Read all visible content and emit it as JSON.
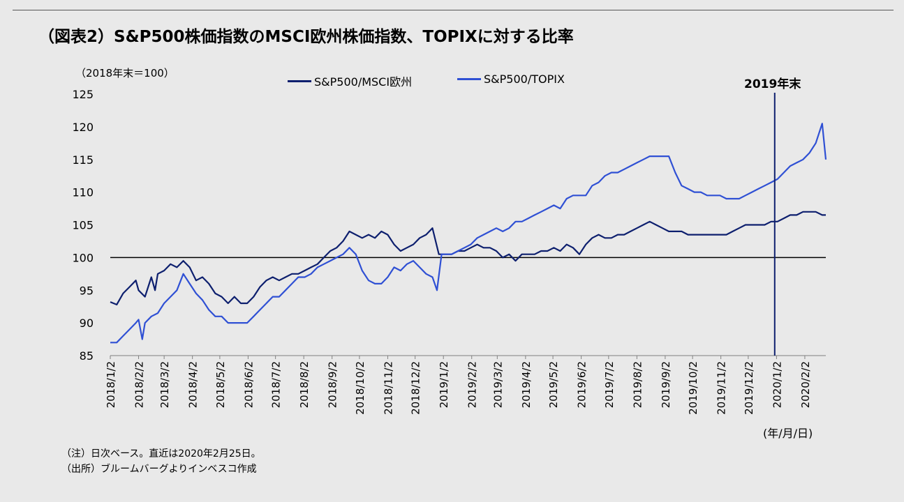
{
  "title": "（図表2）S&P500株価指数のMSCI欧州株価指数、TOPIXに対する比率",
  "y_unit_label": "（2018年末＝100）",
  "x_unit_label": "(年/月/日)",
  "notes": [
    "（注）日次ベース。直近は2020年2月25日。",
    "（出所）ブルームバーグよりインベスコ作成"
  ],
  "colors": {
    "series1": "#0d1f6e",
    "series2": "#2f50d4",
    "reference": "#000000",
    "marker": "#0d1f6e"
  },
  "chart_data": {
    "type": "line",
    "title": "（図表2）S&P500株価指数のMSCI欧州株価指数、TOPIXに対する比率",
    "ylim": [
      85,
      125
    ],
    "yticks": [
      85,
      90,
      95,
      100,
      105,
      110,
      115,
      120,
      125
    ],
    "xlim": [
      "2018-01-02",
      "2020-02-25"
    ],
    "x_tick_labels": [
      "2018/1/2",
      "2018/2/2",
      "2018/3/2",
      "2018/4/2",
      "2018/5/2",
      "2018/6/2",
      "2018/7/2",
      "2018/8/2",
      "2018/9/2",
      "2018/10/2",
      "2018/11/2",
      "2018/12/2",
      "2019/1/2",
      "2019/2/2",
      "2019/3/2",
      "2019/4/2",
      "2019/5/2",
      "2019/6/2",
      "2019/7/2",
      "2019/8/2",
      "2019/9/2",
      "2019/10/2",
      "2019/11/2",
      "2019/12/2",
      "2020/1/2",
      "2020/2/2"
    ],
    "legend_position": "top",
    "reference_line": {
      "y": 100
    },
    "annotation": {
      "label": "2019年末",
      "x": "2019-12-31"
    },
    "series": [
      {
        "name": "S&P500/MSCI欧州",
        "color": "#0d1f6e",
        "points": [
          [
            "2018-01-02",
            93.2
          ],
          [
            "2018-01-09",
            92.8
          ],
          [
            "2018-01-16",
            94.5
          ],
          [
            "2018-01-23",
            95.5
          ],
          [
            "2018-01-30",
            96.5
          ],
          [
            "2018-02-02",
            95
          ],
          [
            "2018-02-09",
            94
          ],
          [
            "2018-02-16",
            97
          ],
          [
            "2018-02-20",
            95
          ],
          [
            "2018-02-23",
            97.5
          ],
          [
            "2018-03-02",
            98
          ],
          [
            "2018-03-09",
            99
          ],
          [
            "2018-03-16",
            98.5
          ],
          [
            "2018-03-23",
            99.5
          ],
          [
            "2018-03-30",
            98.5
          ],
          [
            "2018-04-06",
            96.5
          ],
          [
            "2018-04-13",
            97
          ],
          [
            "2018-04-20",
            96
          ],
          [
            "2018-04-27",
            94.5
          ],
          [
            "2018-05-04",
            94
          ],
          [
            "2018-05-11",
            93
          ],
          [
            "2018-05-18",
            94
          ],
          [
            "2018-05-25",
            93
          ],
          [
            "2018-06-01",
            93
          ],
          [
            "2018-06-08",
            94
          ],
          [
            "2018-06-15",
            95.5
          ],
          [
            "2018-06-22",
            96.5
          ],
          [
            "2018-06-29",
            97
          ],
          [
            "2018-07-06",
            96.5
          ],
          [
            "2018-07-13",
            97
          ],
          [
            "2018-07-20",
            97.5
          ],
          [
            "2018-07-27",
            97.5
          ],
          [
            "2018-08-03",
            98
          ],
          [
            "2018-08-10",
            98.5
          ],
          [
            "2018-08-17",
            99
          ],
          [
            "2018-08-24",
            100
          ],
          [
            "2018-08-31",
            101
          ],
          [
            "2018-09-07",
            101.5
          ],
          [
            "2018-09-14",
            102.5
          ],
          [
            "2018-09-21",
            104
          ],
          [
            "2018-09-28",
            103.5
          ],
          [
            "2018-10-05",
            103
          ],
          [
            "2018-10-12",
            103.5
          ],
          [
            "2018-10-19",
            103
          ],
          [
            "2018-10-26",
            104
          ],
          [
            "2018-11-02",
            103.5
          ],
          [
            "2018-11-09",
            102
          ],
          [
            "2018-11-16",
            101
          ],
          [
            "2018-11-23",
            101.5
          ],
          [
            "2018-11-30",
            102
          ],
          [
            "2018-12-07",
            103
          ],
          [
            "2018-12-14",
            103.5
          ],
          [
            "2018-12-21",
            104.5
          ],
          [
            "2018-12-28",
            100.5
          ],
          [
            "2019-01-04",
            100.5
          ],
          [
            "2019-01-11",
            100.5
          ],
          [
            "2019-01-18",
            101
          ],
          [
            "2019-01-25",
            101
          ],
          [
            "2019-02-01",
            101.5
          ],
          [
            "2019-02-08",
            102
          ],
          [
            "2019-02-15",
            101.5
          ],
          [
            "2019-02-22",
            101.5
          ],
          [
            "2019-03-01",
            101
          ],
          [
            "2019-03-08",
            100
          ],
          [
            "2019-03-15",
            100.5
          ],
          [
            "2019-03-22",
            99.5
          ],
          [
            "2019-03-29",
            100.5
          ],
          [
            "2019-04-05",
            100.5
          ],
          [
            "2019-04-12",
            100.5
          ],
          [
            "2019-04-19",
            101
          ],
          [
            "2019-04-26",
            101
          ],
          [
            "2019-05-03",
            101.5
          ],
          [
            "2019-05-10",
            101
          ],
          [
            "2019-05-17",
            102
          ],
          [
            "2019-05-24",
            101.5
          ],
          [
            "2019-05-31",
            100.5
          ],
          [
            "2019-06-07",
            102
          ],
          [
            "2019-06-14",
            103
          ],
          [
            "2019-06-21",
            103.5
          ],
          [
            "2019-06-28",
            103
          ],
          [
            "2019-07-05",
            103
          ],
          [
            "2019-07-12",
            103.5
          ],
          [
            "2019-07-19",
            103.5
          ],
          [
            "2019-07-26",
            104
          ],
          [
            "2019-08-02",
            104.5
          ],
          [
            "2019-08-09",
            105
          ],
          [
            "2019-08-16",
            105.5
          ],
          [
            "2019-08-23",
            105
          ],
          [
            "2019-08-30",
            104.5
          ],
          [
            "2019-09-06",
            104
          ],
          [
            "2019-09-13",
            104
          ],
          [
            "2019-09-20",
            104
          ],
          [
            "2019-09-27",
            103.5
          ],
          [
            "2019-10-04",
            103.5
          ],
          [
            "2019-10-11",
            103.5
          ],
          [
            "2019-10-18",
            103.5
          ],
          [
            "2019-10-25",
            103.5
          ],
          [
            "2019-11-01",
            103.5
          ],
          [
            "2019-11-08",
            103.5
          ],
          [
            "2019-11-15",
            104
          ],
          [
            "2019-11-22",
            104.5
          ],
          [
            "2019-11-29",
            105
          ],
          [
            "2019-12-06",
            105
          ],
          [
            "2019-12-13",
            105
          ],
          [
            "2019-12-20",
            105
          ],
          [
            "2019-12-27",
            105.5
          ],
          [
            "2020-01-03",
            105.5
          ],
          [
            "2020-01-10",
            106
          ],
          [
            "2020-01-17",
            106.5
          ],
          [
            "2020-01-24",
            106.5
          ],
          [
            "2020-01-31",
            107
          ],
          [
            "2020-02-07",
            107
          ],
          [
            "2020-02-14",
            107
          ],
          [
            "2020-02-21",
            106.5
          ],
          [
            "2020-02-25",
            106.5
          ]
        ]
      },
      {
        "name": "S&P500/TOPIX",
        "color": "#2f50d4",
        "points": [
          [
            "2018-01-02",
            87
          ],
          [
            "2018-01-09",
            87
          ],
          [
            "2018-01-16",
            88
          ],
          [
            "2018-01-23",
            89
          ],
          [
            "2018-01-30",
            90
          ],
          [
            "2018-02-02",
            90.5
          ],
          [
            "2018-02-06",
            87.5
          ],
          [
            "2018-02-09",
            90
          ],
          [
            "2018-02-16",
            91
          ],
          [
            "2018-02-23",
            91.5
          ],
          [
            "2018-03-02",
            93
          ],
          [
            "2018-03-09",
            94
          ],
          [
            "2018-03-16",
            95
          ],
          [
            "2018-03-23",
            97.5
          ],
          [
            "2018-03-30",
            96
          ],
          [
            "2018-04-06",
            94.5
          ],
          [
            "2018-04-13",
            93.5
          ],
          [
            "2018-04-20",
            92
          ],
          [
            "2018-04-27",
            91
          ],
          [
            "2018-05-04",
            91
          ],
          [
            "2018-05-11",
            90
          ],
          [
            "2018-05-18",
            90
          ],
          [
            "2018-05-25",
            90
          ],
          [
            "2018-06-01",
            90
          ],
          [
            "2018-06-08",
            91
          ],
          [
            "2018-06-15",
            92
          ],
          [
            "2018-06-22",
            93
          ],
          [
            "2018-06-29",
            94
          ],
          [
            "2018-07-06",
            94
          ],
          [
            "2018-07-13",
            95
          ],
          [
            "2018-07-20",
            96
          ],
          [
            "2018-07-27",
            97
          ],
          [
            "2018-08-03",
            97
          ],
          [
            "2018-08-10",
            97.5
          ],
          [
            "2018-08-17",
            98.5
          ],
          [
            "2018-08-24",
            99
          ],
          [
            "2018-08-31",
            99.5
          ],
          [
            "2018-09-07",
            100
          ],
          [
            "2018-09-14",
            100.5
          ],
          [
            "2018-09-21",
            101.5
          ],
          [
            "2018-09-28",
            100.5
          ],
          [
            "2018-10-05",
            98
          ],
          [
            "2018-10-12",
            96.5
          ],
          [
            "2018-10-19",
            96
          ],
          [
            "2018-10-26",
            96
          ],
          [
            "2018-11-02",
            97
          ],
          [
            "2018-11-09",
            98.5
          ],
          [
            "2018-11-16",
            98
          ],
          [
            "2018-11-23",
            99
          ],
          [
            "2018-11-30",
            99.5
          ],
          [
            "2018-12-07",
            98.5
          ],
          [
            "2018-12-14",
            97.5
          ],
          [
            "2018-12-21",
            97
          ],
          [
            "2018-12-26",
            95
          ],
          [
            "2018-12-31",
            100.5
          ],
          [
            "2019-01-04",
            100.5
          ],
          [
            "2019-01-11",
            100.5
          ],
          [
            "2019-01-18",
            101
          ],
          [
            "2019-01-25",
            101.5
          ],
          [
            "2019-02-01",
            102
          ],
          [
            "2019-02-08",
            103
          ],
          [
            "2019-02-15",
            103.5
          ],
          [
            "2019-02-22",
            104
          ],
          [
            "2019-03-01",
            104.5
          ],
          [
            "2019-03-08",
            104
          ],
          [
            "2019-03-15",
            104.5
          ],
          [
            "2019-03-22",
            105.5
          ],
          [
            "2019-03-29",
            105.5
          ],
          [
            "2019-04-05",
            106
          ],
          [
            "2019-04-12",
            106.5
          ],
          [
            "2019-04-19",
            107
          ],
          [
            "2019-04-26",
            107.5
          ],
          [
            "2019-05-03",
            108
          ],
          [
            "2019-05-10",
            107.5
          ],
          [
            "2019-05-17",
            109
          ],
          [
            "2019-05-24",
            109.5
          ],
          [
            "2019-05-31",
            109.5
          ],
          [
            "2019-06-07",
            109.5
          ],
          [
            "2019-06-14",
            111
          ],
          [
            "2019-06-21",
            111.5
          ],
          [
            "2019-06-28",
            112.5
          ],
          [
            "2019-07-05",
            113
          ],
          [
            "2019-07-12",
            113
          ],
          [
            "2019-07-19",
            113.5
          ],
          [
            "2019-07-26",
            114
          ],
          [
            "2019-08-02",
            114.5
          ],
          [
            "2019-08-09",
            115
          ],
          [
            "2019-08-16",
            115.5
          ],
          [
            "2019-08-23",
            115.5
          ],
          [
            "2019-08-30",
            115.5
          ],
          [
            "2019-09-06",
            115.5
          ],
          [
            "2019-09-13",
            113
          ],
          [
            "2019-09-20",
            111
          ],
          [
            "2019-09-27",
            110.5
          ],
          [
            "2019-10-04",
            110
          ],
          [
            "2019-10-11",
            110
          ],
          [
            "2019-10-18",
            109.5
          ],
          [
            "2019-10-25",
            109.5
          ],
          [
            "2019-11-01",
            109.5
          ],
          [
            "2019-11-08",
            109
          ],
          [
            "2019-11-15",
            109
          ],
          [
            "2019-11-22",
            109
          ],
          [
            "2019-11-29",
            109.5
          ],
          [
            "2019-12-06",
            110
          ],
          [
            "2019-12-13",
            110.5
          ],
          [
            "2019-12-20",
            111
          ],
          [
            "2019-12-27",
            111.5
          ],
          [
            "2020-01-03",
            112
          ],
          [
            "2020-01-10",
            113
          ],
          [
            "2020-01-17",
            114
          ],
          [
            "2020-01-24",
            114.5
          ],
          [
            "2020-01-31",
            115
          ],
          [
            "2020-02-07",
            116
          ],
          [
            "2020-02-14",
            117.5
          ],
          [
            "2020-02-21",
            120.5
          ],
          [
            "2020-02-25",
            115
          ]
        ]
      }
    ]
  }
}
